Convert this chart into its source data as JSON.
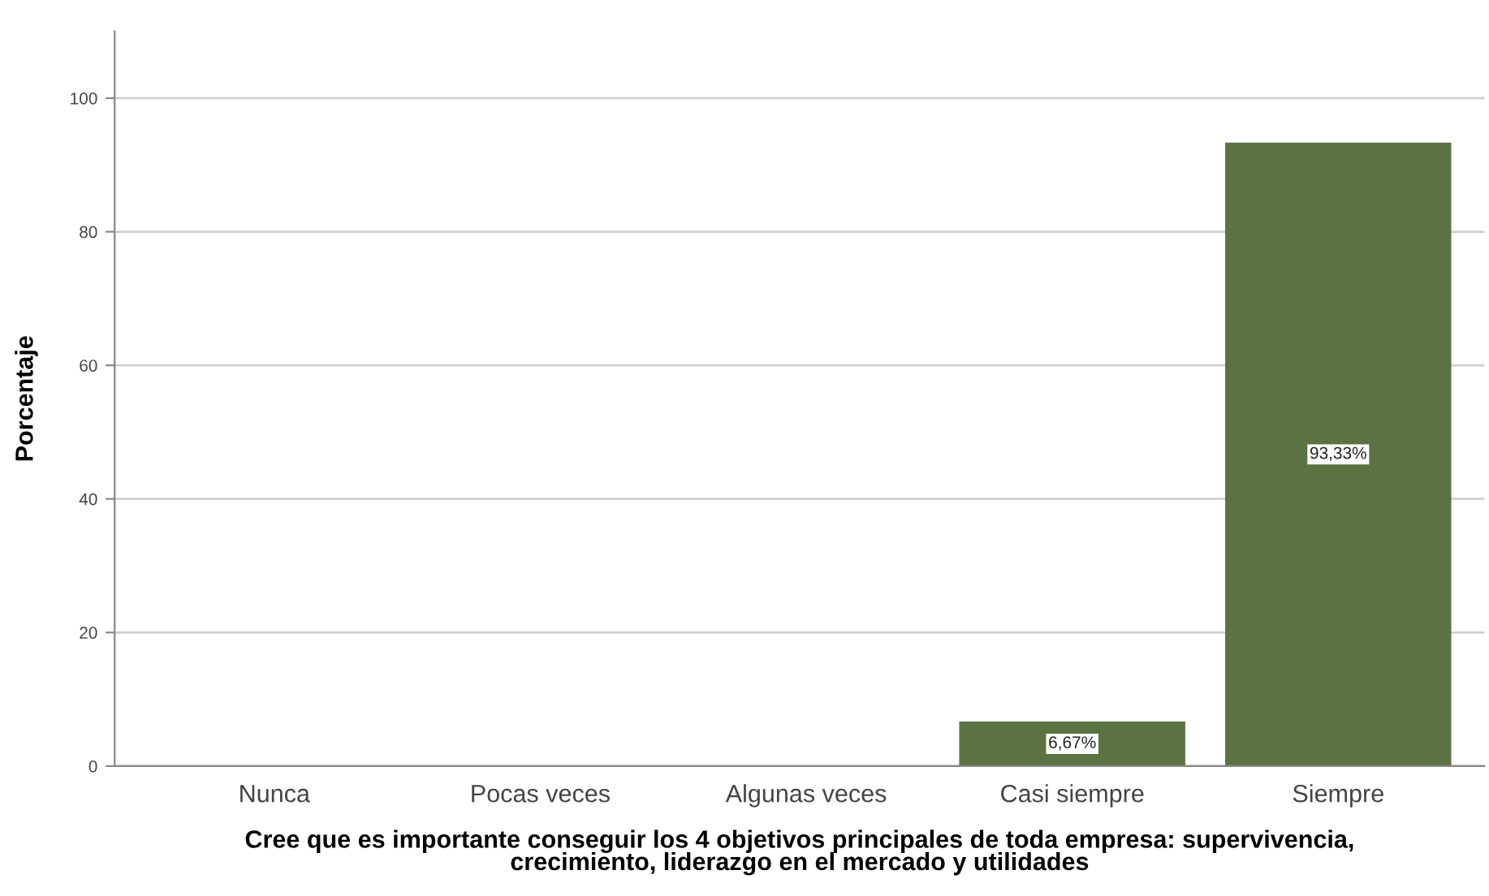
{
  "chart_data": {
    "type": "bar",
    "xlabel": "Cree que es importante conseguir los 4 objetivos principales de toda empresa: supervivencia,\ncrecimiento, liderazgo en el mercado y utilidades",
    "ylabel": "Porcentaje",
    "categories": [
      "Nunca",
      "Pocas veces",
      "Algunas veces",
      "Casi siempre",
      "Siempre"
    ],
    "values": [
      0,
      0,
      0,
      6.67,
      93.33
    ],
    "value_labels": [
      null,
      null,
      null,
      "6,67%",
      "93,33%"
    ],
    "color": "#5b7243",
    "ylim": [
      0,
      110
    ],
    "yticks": [
      0,
      20,
      40,
      60,
      80,
      100
    ],
    "grid": "y"
  }
}
